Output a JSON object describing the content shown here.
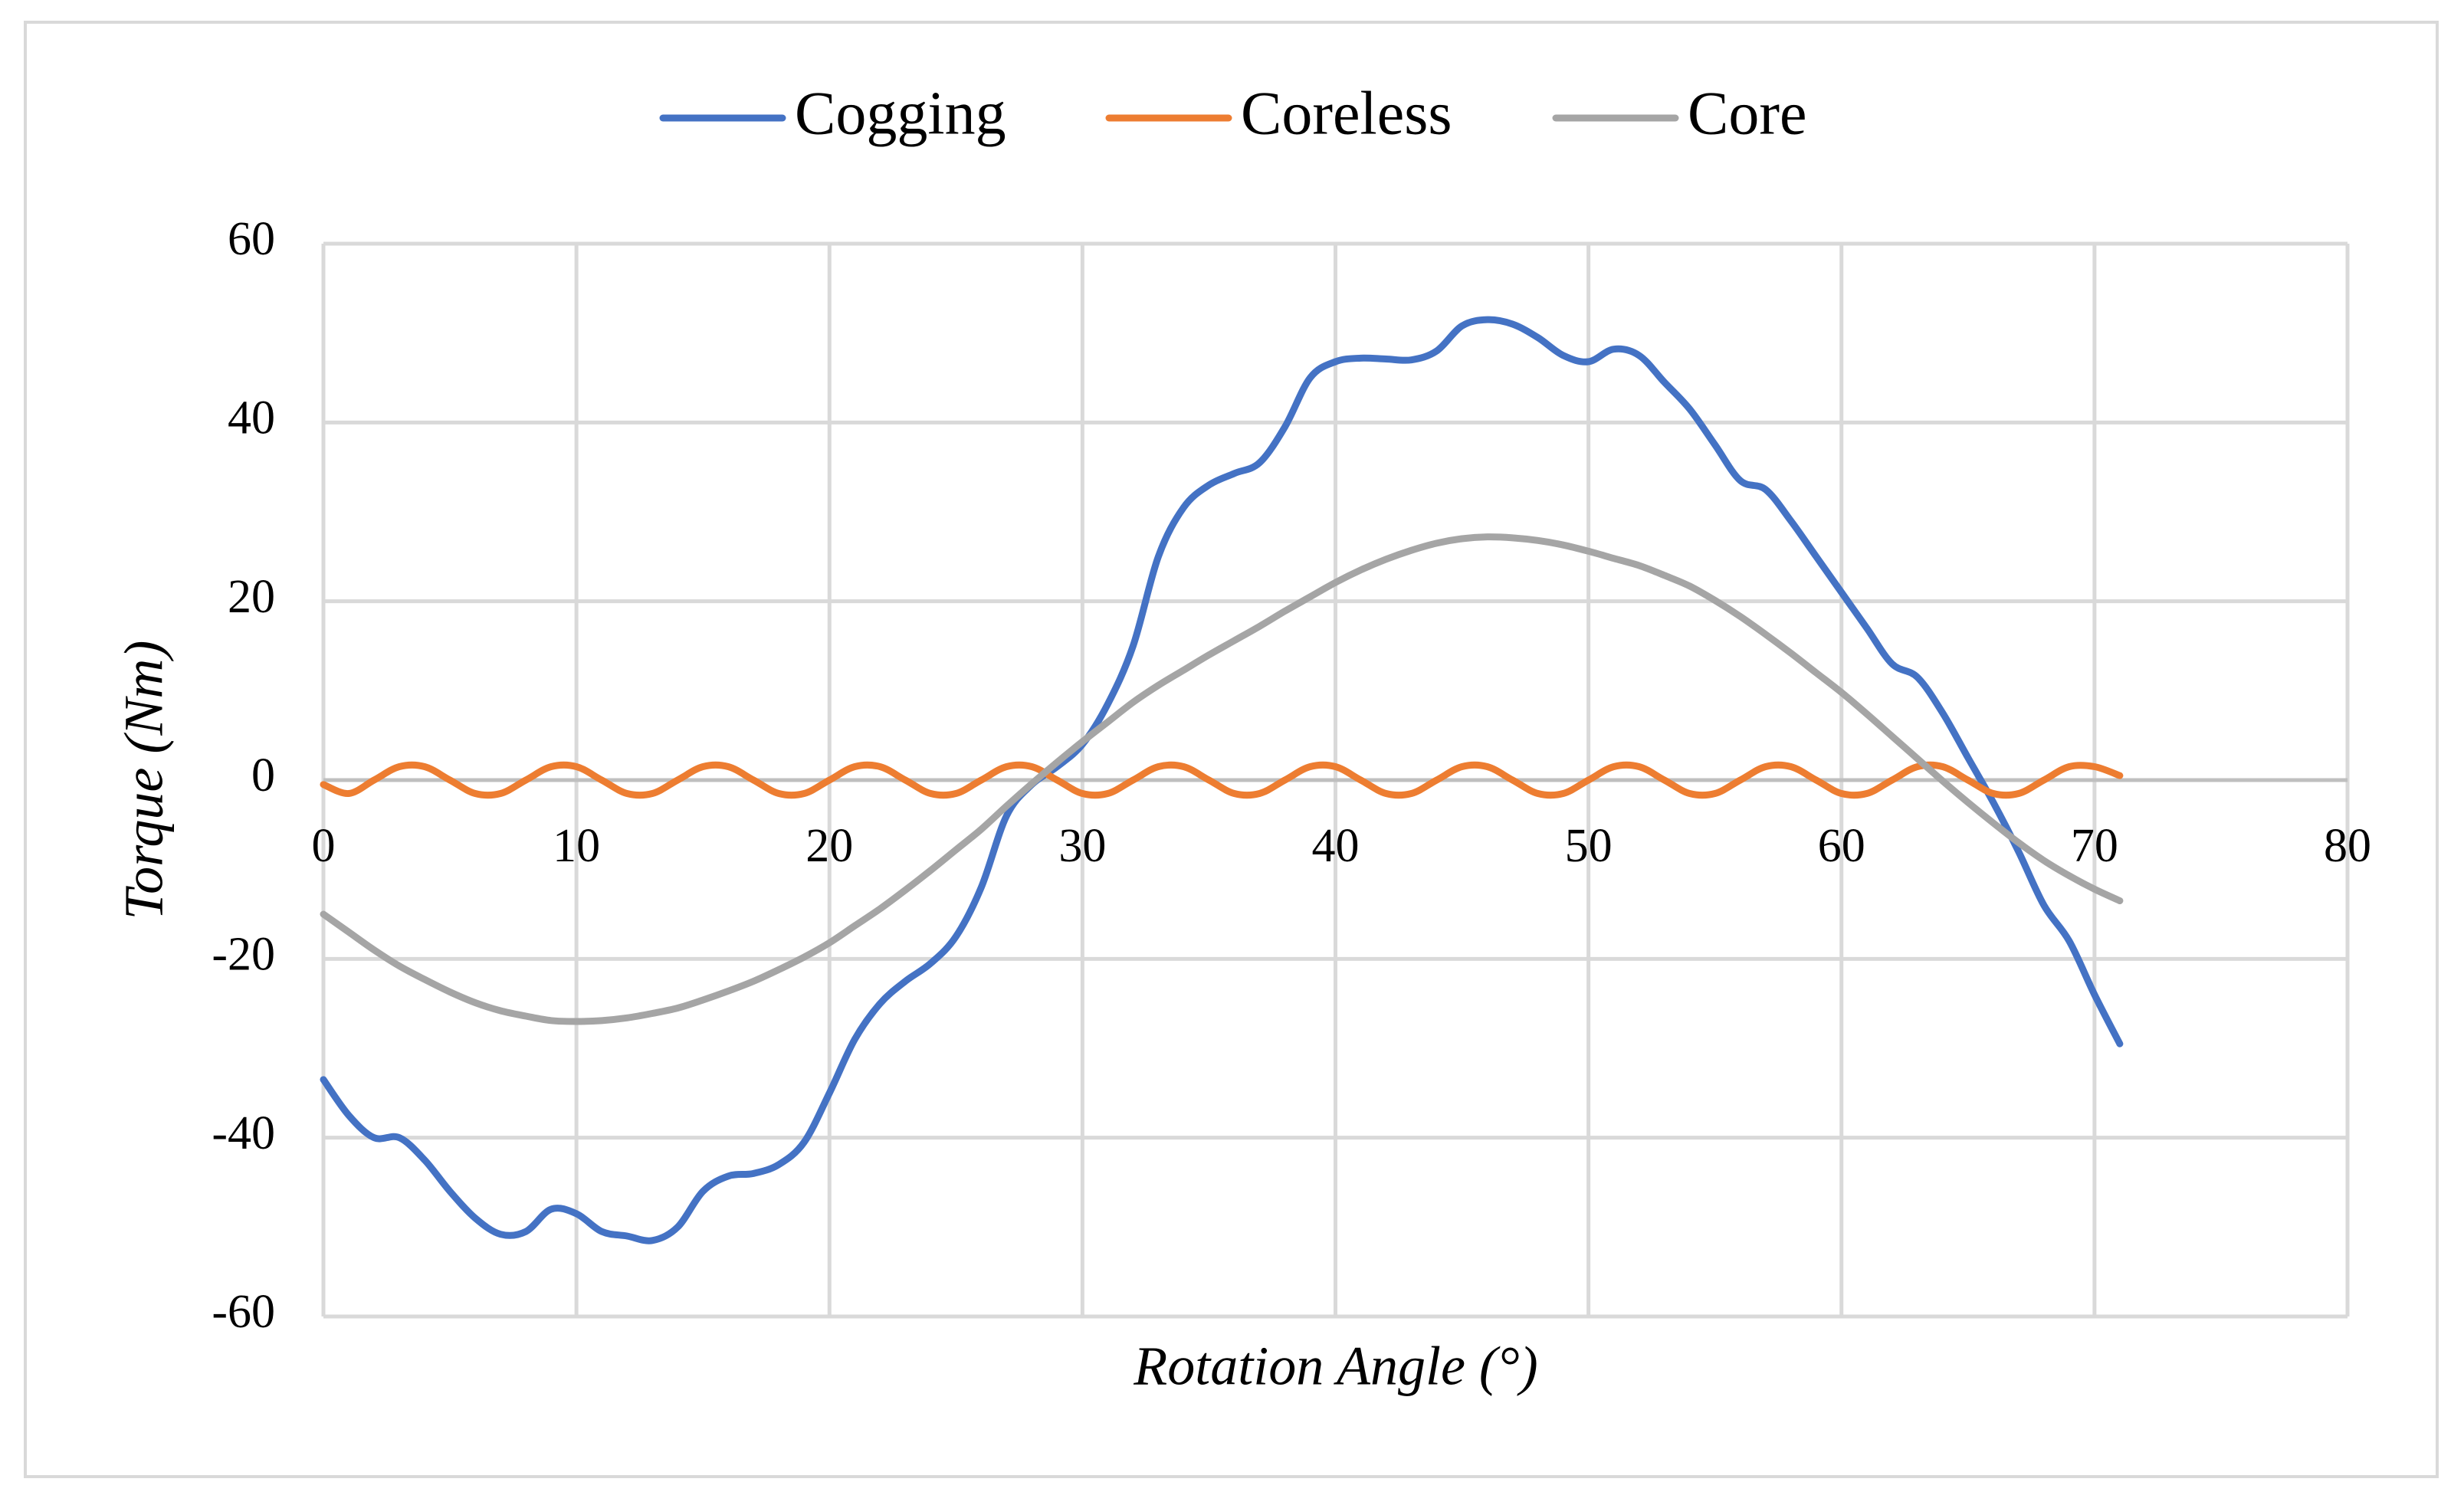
{
  "chart_data": {
    "type": "line",
    "x_label": "Rotation Angle (°)",
    "y_label": "Torque (Nm)",
    "x": [
      0,
      1,
      2,
      3,
      4,
      5,
      6,
      7,
      8,
      9,
      10,
      11,
      12,
      13,
      14,
      15,
      16,
      17,
      18,
      19,
      20,
      21,
      22,
      23,
      24,
      25,
      26,
      27,
      28,
      29,
      30,
      31,
      32,
      33,
      34,
      35,
      36,
      37,
      38,
      39,
      40,
      41,
      42,
      43,
      44,
      45,
      46,
      47,
      48,
      49,
      50,
      51,
      52,
      53,
      54,
      55,
      56,
      57,
      58,
      59,
      60,
      61,
      62,
      63,
      64,
      65,
      66,
      67,
      68,
      69,
      70,
      71
    ],
    "series": [
      {
        "name": "Cogging",
        "color": "#4472c4",
        "values": [
          -33.5,
          -37.5,
          -40,
          -40,
          -42.5,
          -46,
          -49,
          -50.8,
          -50.5,
          -48,
          -48.5,
          -50.5,
          -51,
          -51.5,
          -50,
          -46,
          -44.3,
          -44,
          -43,
          -40.5,
          -35,
          -29,
          -25,
          -22.5,
          -20.5,
          -17.5,
          -12,
          -4,
          -0.5,
          1.5,
          4,
          8.5,
          15,
          25,
          30.5,
          33,
          34.3,
          35.5,
          39.5,
          45,
          46.8,
          47.2,
          47.1,
          47,
          48,
          50.8,
          51.5,
          51,
          49.5,
          47.5,
          46.8,
          48.2,
          47.5,
          44.5,
          41.5,
          37.5,
          33.5,
          32.5,
          29,
          25,
          21,
          17,
          13,
          11.5,
          7.5,
          2.5,
          -2.5,
          -8,
          -14,
          -18,
          -24,
          -29.5
        ]
      },
      {
        "name": "Coreless",
        "color": "#ed7d31",
        "values": [
          -0.5,
          -1.5,
          0,
          1.5,
          1.5,
          0,
          -1.5,
          -1.5,
          0,
          1.5,
          1.5,
          0,
          -1.5,
          -1.5,
          0,
          1.5,
          1.5,
          0,
          -1.5,
          -1.5,
          0,
          1.5,
          1.5,
          0,
          -1.5,
          -1.5,
          0,
          1.5,
          1.5,
          0,
          -1.5,
          -1.5,
          0,
          1.5,
          1.5,
          0,
          -1.5,
          -1.5,
          0,
          1.5,
          1.5,
          0,
          -1.5,
          -1.5,
          0,
          1.5,
          1.5,
          0,
          -1.5,
          -1.5,
          0,
          1.5,
          1.5,
          0,
          -1.5,
          -1.5,
          0,
          1.5,
          1.5,
          0,
          -1.5,
          -1.5,
          0,
          1.5,
          1.5,
          0,
          -1.5,
          -1.5,
          0,
          1.5,
          1.5,
          0.5
        ]
      },
      {
        "name": "Core",
        "color": "#a5a5a5",
        "values": [
          -15,
          -17,
          -19,
          -20.8,
          -22.3,
          -23.7,
          -24.9,
          -25.8,
          -26.4,
          -26.9,
          -27,
          -26.9,
          -26.6,
          -26.1,
          -25.5,
          -24.6,
          -23.6,
          -22.5,
          -21.2,
          -19.8,
          -18.2,
          -16.3,
          -14.4,
          -12.3,
          -10.1,
          -7.8,
          -5.5,
          -2.9,
          -0.4,
          2,
          4.3,
          6.5,
          8.7,
          10.6,
          12.3,
          14,
          15.6,
          17.2,
          18.9,
          20.5,
          22.1,
          23.5,
          24.7,
          25.7,
          26.5,
          27,
          27.2,
          27.1,
          26.8,
          26.3,
          25.6,
          24.8,
          24,
          22.9,
          21.7,
          20.1,
          18.3,
          16.3,
          14.2,
          12,
          9.8,
          7.4,
          4.9,
          2.4,
          -0.1,
          -2.5,
          -4.8,
          -7,
          -9,
          -10.7,
          -12.2,
          -13.5
        ]
      }
    ],
    "xlim": [
      0,
      80
    ],
    "xticks": [
      0,
      10,
      20,
      30,
      40,
      50,
      60,
      70,
      80
    ],
    "ylim": [
      -60,
      60
    ],
    "yticks": [
      -60,
      -40,
      -20,
      0,
      20,
      40,
      60
    ],
    "grid": true,
    "legend": "top"
  }
}
